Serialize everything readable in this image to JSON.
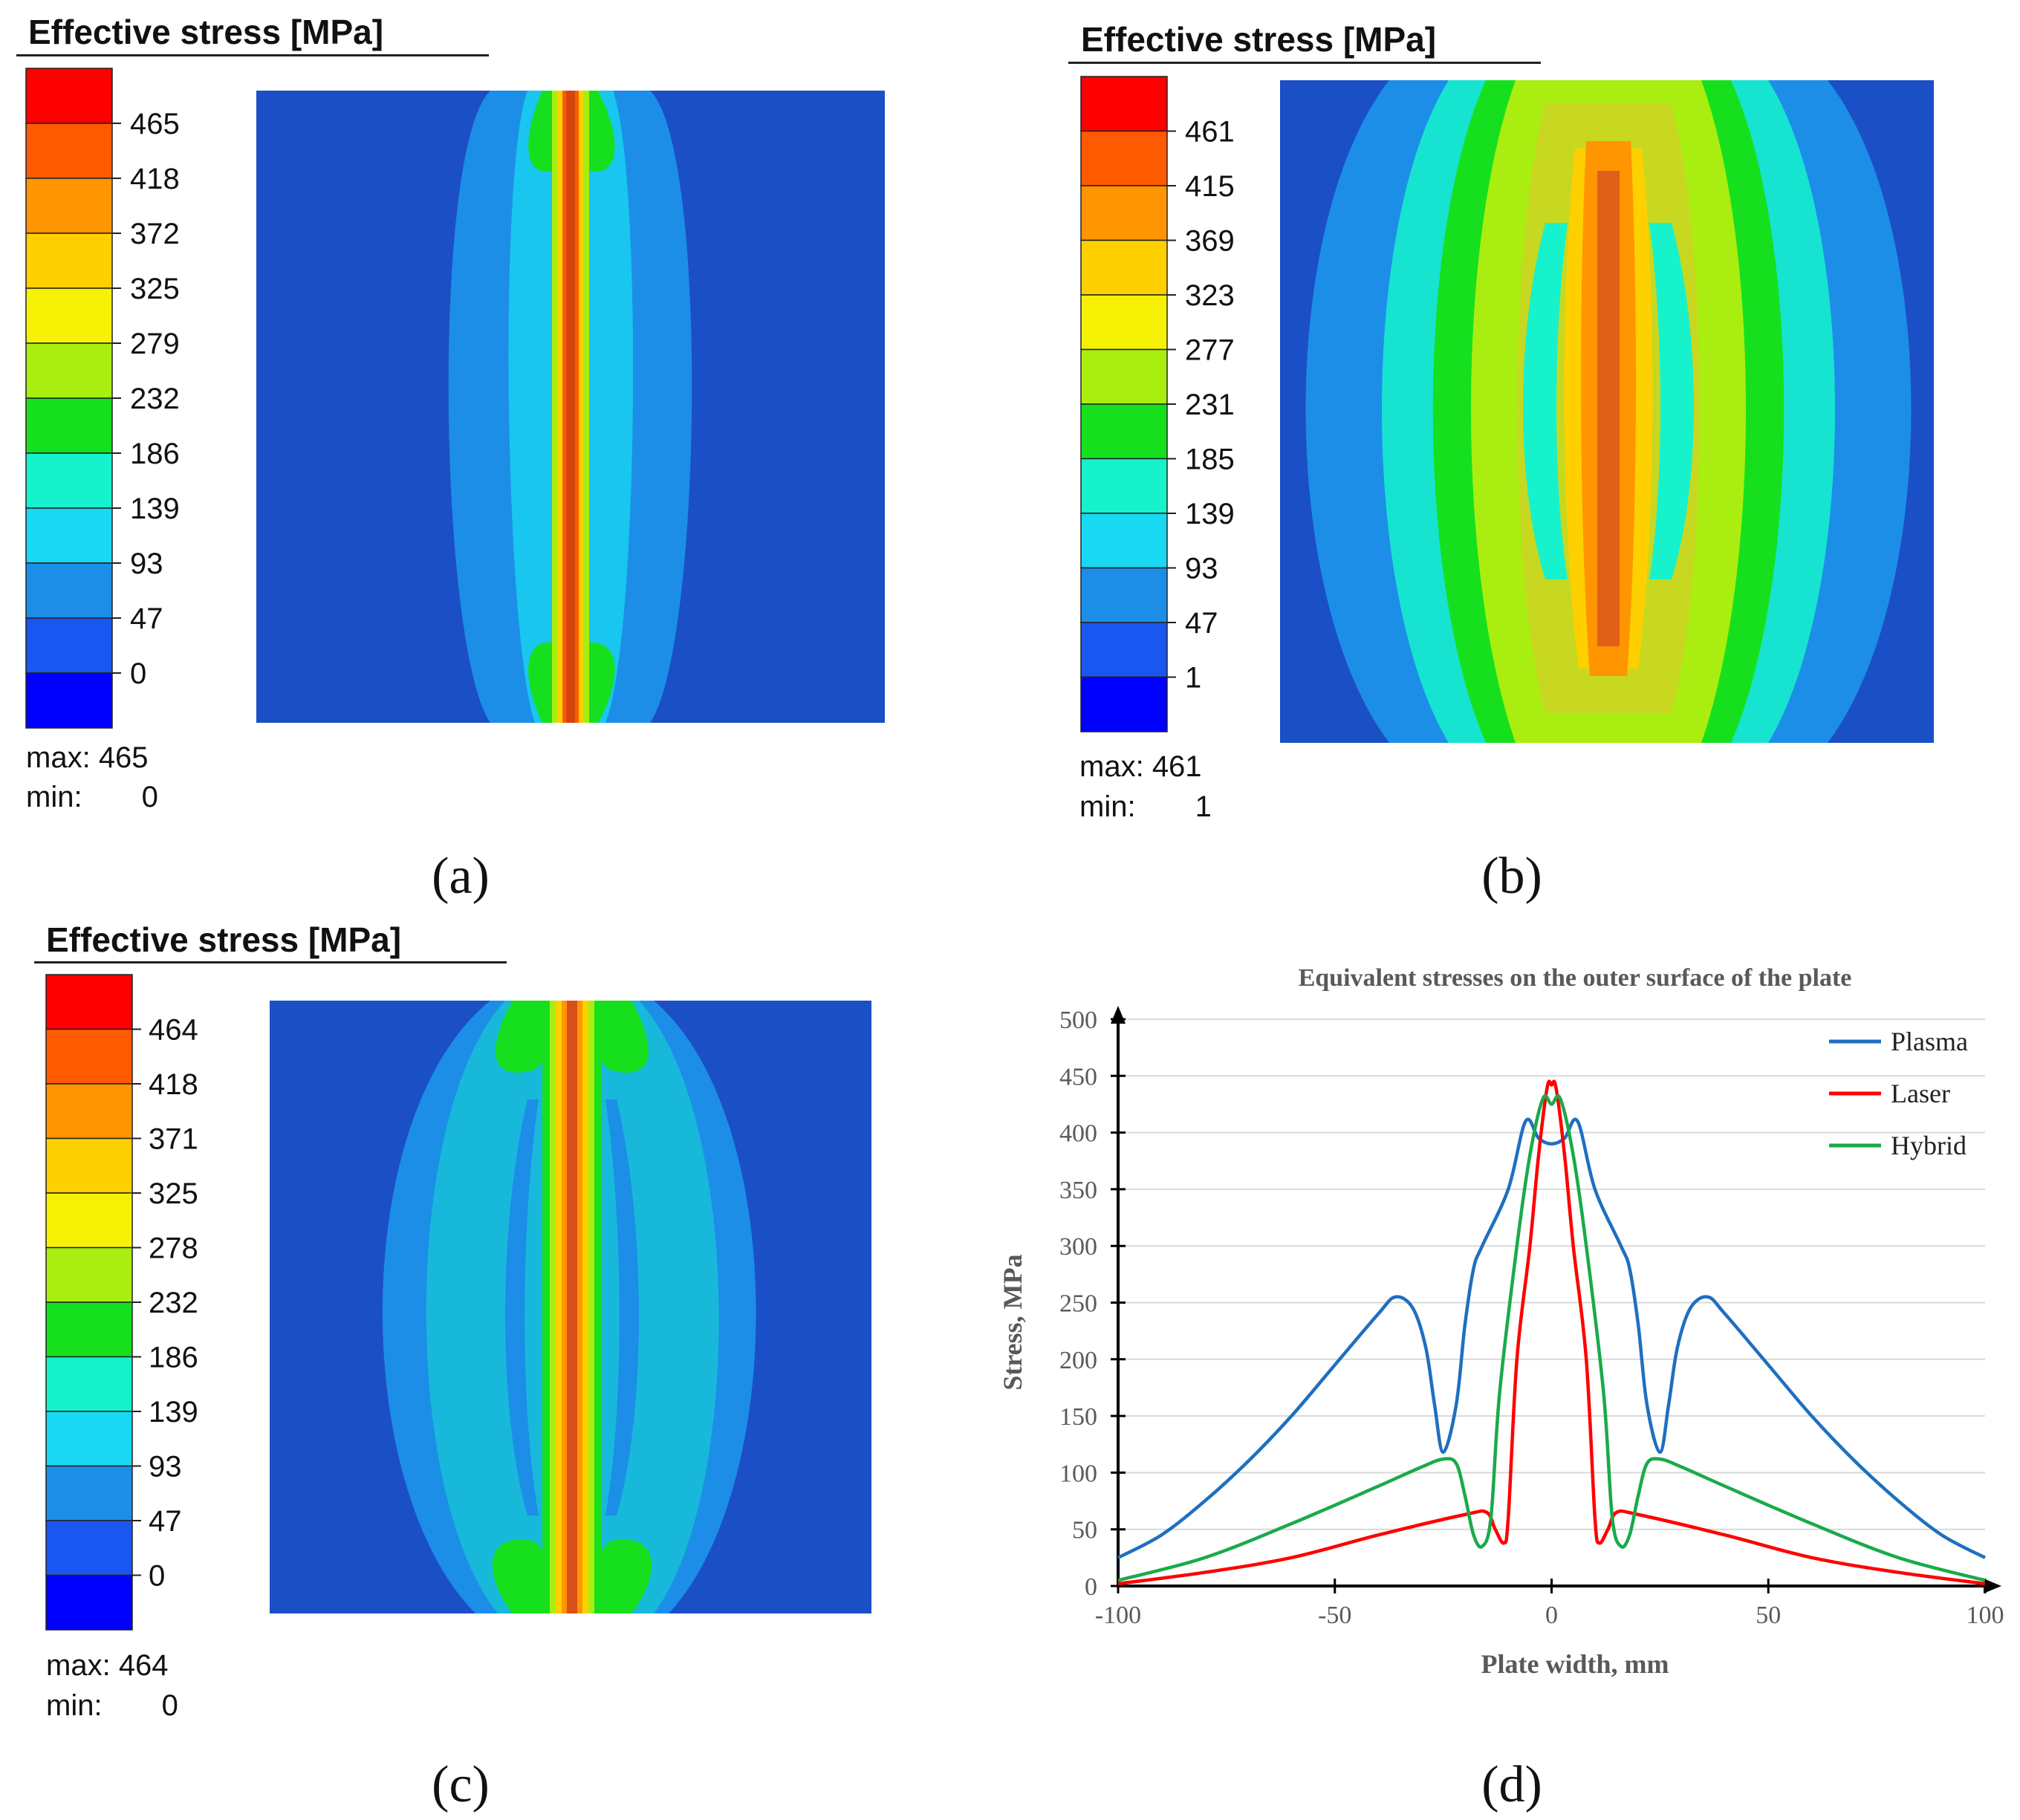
{
  "colors": {
    "scale": [
      "#0000ff",
      "#1a56f0",
      "#1c8ee8",
      "#18d8f2",
      "#16f2cc",
      "#16e01e",
      "#a9ee10",
      "#f7f205",
      "#ffd000",
      "#ff9500",
      "#ff5a00",
      "#ff0000"
    ],
    "plate_bg": "#1b4fc6",
    "plasma": "#1f6fbf",
    "laser": "#ff0000",
    "hybrid": "#1aaa4a"
  },
  "panels": [
    {
      "legend_title": "Effective stress [MPa]",
      "ticks": [
        "465",
        "418",
        "372",
        "325",
        "279",
        "232",
        "186",
        "139",
        "93",
        "47",
        "0"
      ],
      "max_label": "max:",
      "max_value": "465",
      "min_label": "min:",
      "min_value": "0",
      "caption": "(a)"
    },
    {
      "legend_title": "Effective stress [MPa]",
      "ticks": [
        "461",
        "415",
        "369",
        "323",
        "277",
        "231",
        "185",
        "139",
        "93",
        "47",
        "1"
      ],
      "max_label": "max:",
      "max_value": "461",
      "min_label": "min:",
      "min_value": "1",
      "caption": "(b)"
    },
    {
      "legend_title": "Effective stress [MPa]",
      "ticks": [
        "464",
        "418",
        "371",
        "325",
        "278",
        "232",
        "186",
        "139",
        "93",
        "47",
        "0"
      ],
      "max_label": "max:",
      "max_value": "464",
      "min_label": "min:",
      "min_value": "0",
      "caption": "(c)"
    },
    {
      "caption": "(d)"
    }
  ],
  "chart_data": {
    "type": "line",
    "title": "Equivalent stresses on the outer surface of the plate",
    "xlabel": "Plate width, mm",
    "ylabel": "Stress, MPa",
    "xlim": [
      -100,
      100
    ],
    "ylim": [
      0,
      500
    ],
    "x_ticks": [
      -100,
      -50,
      0,
      50,
      100
    ],
    "y_ticks": [
      0,
      50,
      100,
      150,
      200,
      250,
      300,
      350,
      400,
      450,
      500
    ],
    "grid": "horizontal",
    "legend_position": "top-right",
    "series": [
      {
        "name": "Plasma",
        "x": [
          -100,
          -90,
          -80,
          -70,
          -60,
          -50,
          -40,
          -36,
          -32,
          -29,
          -27,
          -25,
          -22,
          -20,
          -18,
          -16,
          -10,
          -6,
          -3,
          0,
          3,
          6,
          10,
          16,
          18,
          20,
          22,
          25,
          27,
          29,
          32,
          36,
          40,
          50,
          60,
          70,
          80,
          90,
          100
        ],
        "y": [
          25,
          45,
          75,
          110,
          150,
          195,
          240,
          255,
          245,
          210,
          160,
          118,
          160,
          230,
          280,
          300,
          350,
          410,
          395,
          390,
          395,
          410,
          350,
          300,
          280,
          230,
          160,
          118,
          160,
          210,
          245,
          255,
          240,
          195,
          150,
          110,
          75,
          45,
          25
        ]
      },
      {
        "name": "Laser",
        "x": [
          -100,
          -80,
          -60,
          -40,
          -20,
          -15,
          -13,
          -11,
          -10,
          -8,
          -5,
          -3,
          -1,
          0,
          1,
          3,
          5,
          8,
          10,
          11,
          13,
          15,
          20,
          40,
          60,
          80,
          100
        ],
        "y": [
          2,
          12,
          25,
          45,
          63,
          65,
          50,
          38,
          60,
          200,
          300,
          380,
          440,
          442,
          440,
          380,
          300,
          200,
          60,
          38,
          50,
          65,
          63,
          45,
          25,
          12,
          2
        ]
      },
      {
        "name": "Hybrid",
        "x": [
          -100,
          -80,
          -60,
          -40,
          -30,
          -25,
          -22,
          -20,
          -18,
          -16,
          -14,
          -12,
          -8,
          -5,
          -2,
          0,
          2,
          5,
          8,
          12,
          14,
          16,
          18,
          20,
          22,
          25,
          30,
          40,
          60,
          80,
          100
        ],
        "y": [
          5,
          25,
          55,
          88,
          105,
          112,
          108,
          80,
          45,
          35,
          60,
          170,
          300,
          380,
          430,
          425,
          430,
          380,
          300,
          170,
          60,
          35,
          45,
          80,
          108,
          112,
          105,
          88,
          55,
          25,
          5
        ]
      }
    ]
  }
}
